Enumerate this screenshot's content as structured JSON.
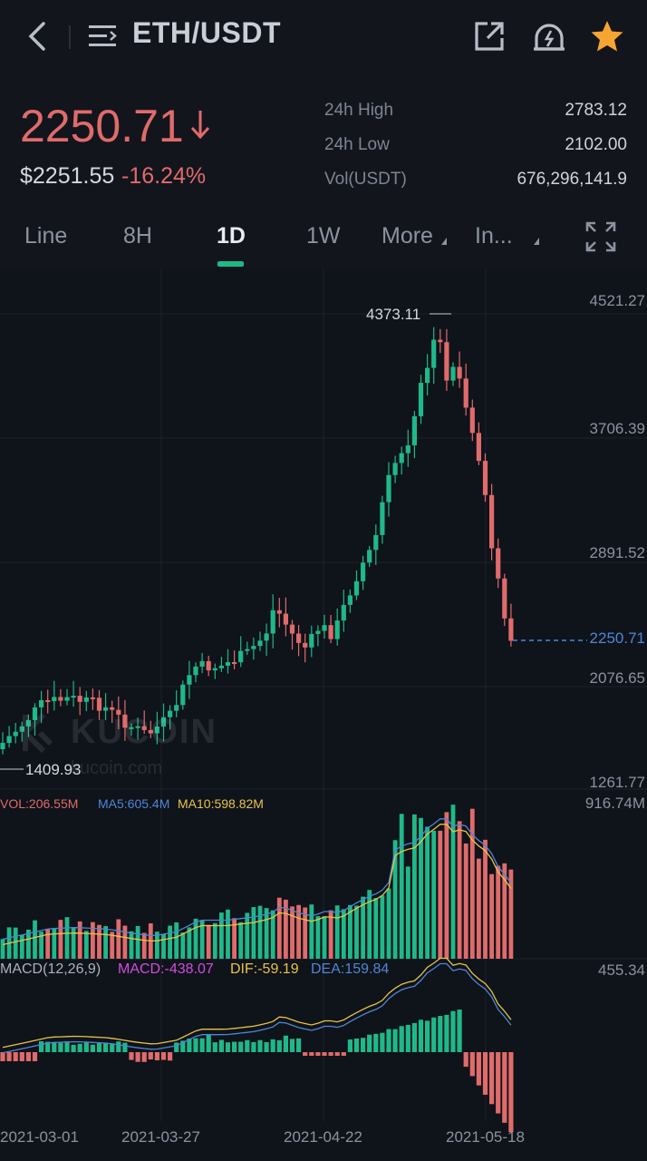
{
  "header": {
    "pair": "ETH/USDT",
    "icons": [
      "back-icon",
      "menu-icon",
      "share-icon",
      "alarm-icon",
      "star-icon"
    ],
    "star_color": "#f7a531"
  },
  "ticker": {
    "last_price": "2250.71",
    "usd_price": "$2251.55",
    "change": "-16.24%",
    "stats": [
      {
        "label": "24h High",
        "value": "2783.12"
      },
      {
        "label": "24h Low",
        "value": "2102.00"
      },
      {
        "label": "Vol(USDT)",
        "value": "676,296,141.9"
      }
    ],
    "down_color": "#e06b6b",
    "up_color": "#1fb889"
  },
  "tabs": [
    {
      "label": "Line"
    },
    {
      "label": "8H"
    },
    {
      "label": "1D"
    },
    {
      "label": "1W"
    },
    {
      "label": "More"
    },
    {
      "label": "In..."
    }
  ],
  "active_tab": "1D",
  "watermark": {
    "brand": "KUCOIN",
    "domain": "kucoin.com"
  },
  "chart_data": [
    {
      "type": "candlestick",
      "price_axis": [
        "4521.27",
        "3706.39",
        "2891.52",
        "2076.65",
        "1261.77"
      ],
      "price_range": [
        1261.77,
        4521.27
      ],
      "high_marker": "4373.11",
      "low_marker": "1409.93",
      "last_price_line": "2250.71",
      "grid": true,
      "x_tick_labels": [
        "2021-03-01",
        "2021-03-27",
        "2021-04-22",
        "2021-05-18"
      ]
    },
    {
      "type": "bar",
      "title": "VOL:206.55M",
      "ma5": "MA5:605.4M",
      "ma10": "MA10:598.82M",
      "axis_max": "916.74M"
    },
    {
      "type": "bar",
      "title": "MACD(12,26,9)",
      "macd": "MACD:-438.07",
      "dif": "DIF:-59.19",
      "dea": "DEA:159.84",
      "axis_max": "455.34"
    }
  ]
}
